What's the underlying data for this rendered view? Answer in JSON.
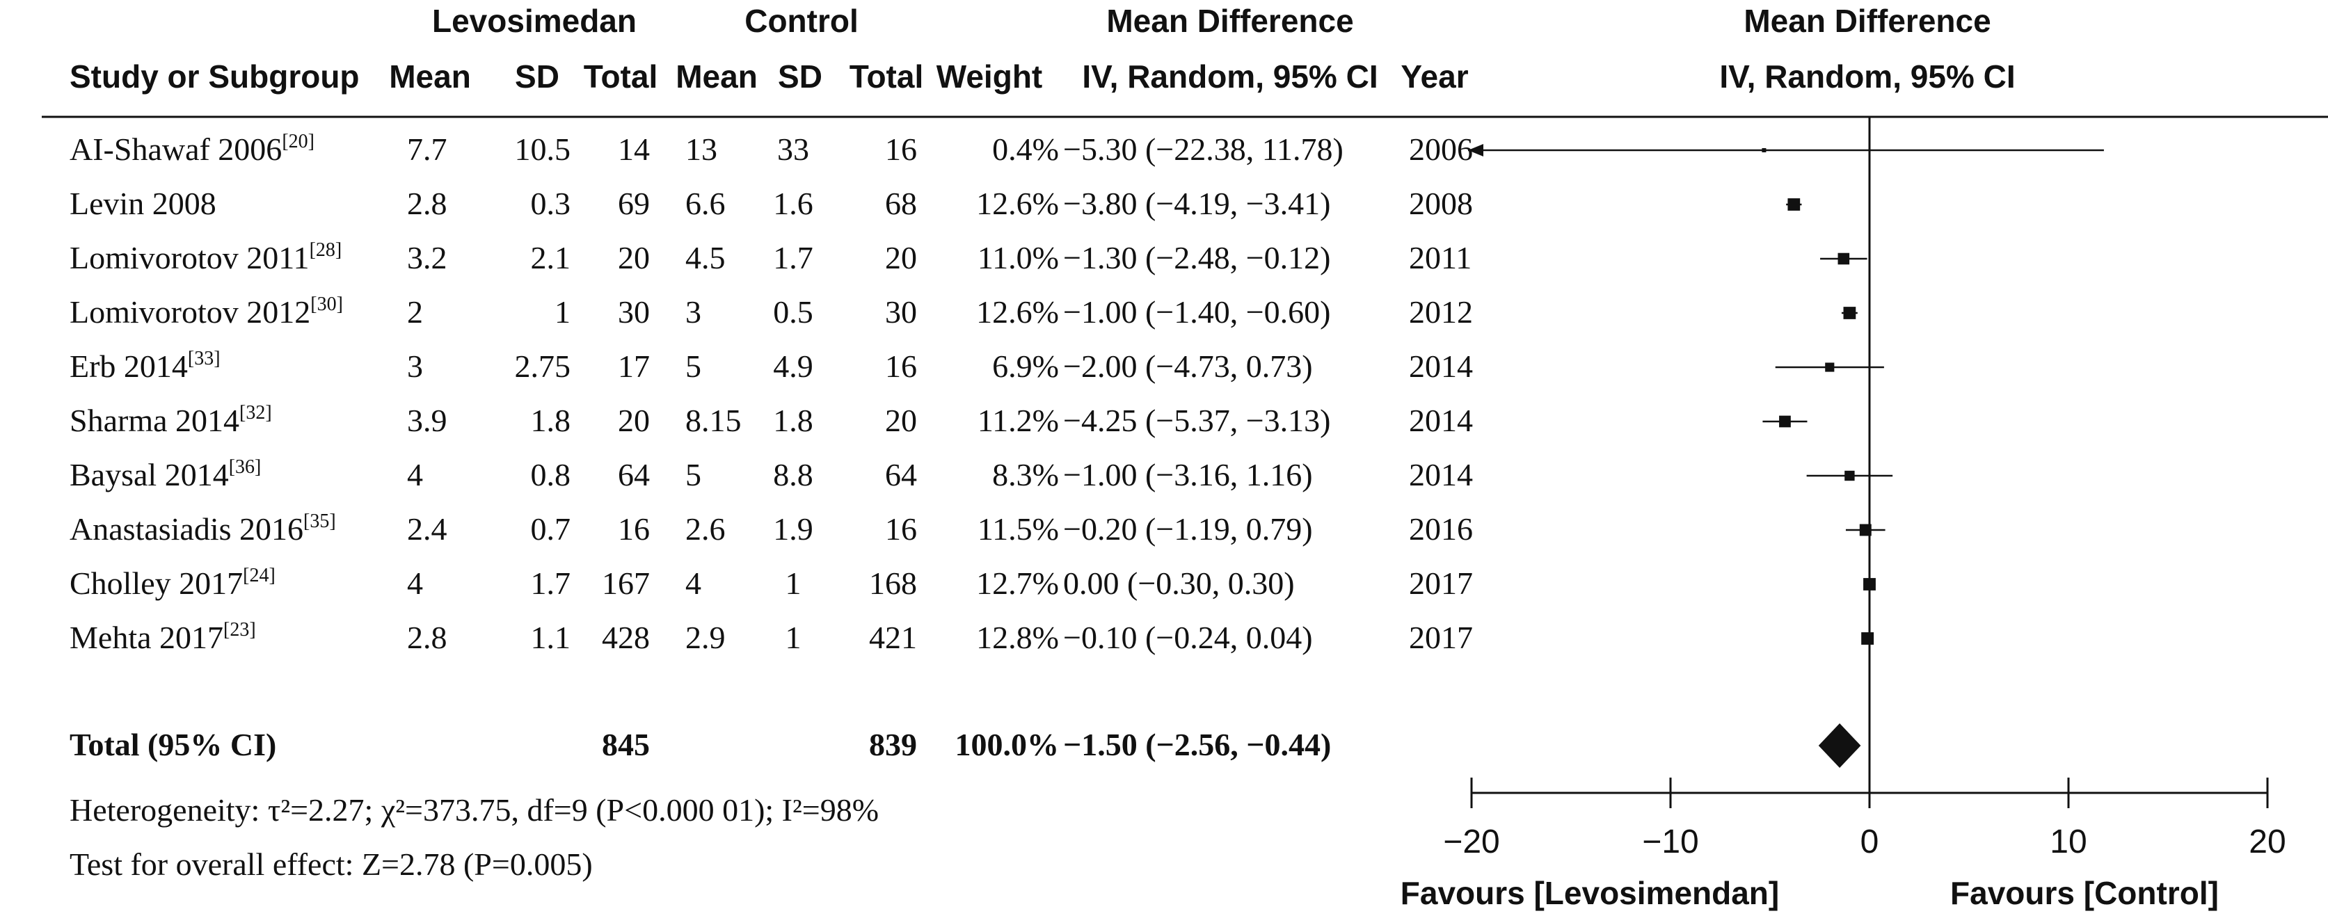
{
  "header": {
    "group1": "Levosimedan",
    "group2": "Control",
    "md_title": "Mean Difference",
    "plot_title": "Mean Difference",
    "plot_method": "IV, Random, 95% CI",
    "columns": {
      "study": "Study or Subgroup",
      "mean1": "Mean",
      "sd1": "SD",
      "total1": "Total",
      "mean2": "Mean",
      "sd2": "SD",
      "total2": "Total",
      "weight": "Weight",
      "md": "IV, Random, 95% CI",
      "year": "Year"
    }
  },
  "chart_data": {
    "type": "forest",
    "xlim": [
      -20,
      20
    ],
    "ticks": [
      -20,
      -10,
      0,
      10,
      20
    ],
    "tick_labels": [
      "−20",
      "−10",
      "0",
      "10",
      "20"
    ],
    "favours_left": "Favours [Levosimendan]",
    "favours_right": "Favours [Control]",
    "studies": [
      {
        "name": "AI-Shawaf 2006",
        "ref": "[20]",
        "mean1": "7.7",
        "sd1": "10.5",
        "total1": "14",
        "mean2": "13",
        "sd2": "33",
        "total2": "16",
        "weight": "0.4%",
        "md_text": "−5.30 (−22.38, 11.78)",
        "year": "2006",
        "md": -5.3,
        "lo": -22.38,
        "hi": 11.78,
        "w": 0.4
      },
      {
        "name": "Levin 2008",
        "ref": "",
        "mean1": "2.8",
        "sd1": "0.3",
        "total1": "69",
        "mean2": "6.6",
        "sd2": "1.6",
        "total2": "68",
        "weight": "12.6%",
        "md_text": "−3.80 (−4.19, −3.41)",
        "year": "2008",
        "md": -3.8,
        "lo": -4.19,
        "hi": -3.41,
        "w": 12.6
      },
      {
        "name": "Lomivorotov 2011",
        "ref": "[28]",
        "mean1": "3.2",
        "sd1": "2.1",
        "total1": "20",
        "mean2": "4.5",
        "sd2": "1.7",
        "total2": "20",
        "weight": "11.0%",
        "md_text": "−1.30 (−2.48, −0.12)",
        "year": "2011",
        "md": -1.3,
        "lo": -2.48,
        "hi": -0.12,
        "w": 11.0
      },
      {
        "name": "Lomivorotov 2012",
        "ref": "[30]",
        "mean1": "2",
        "sd1": "1",
        "total1": "30",
        "mean2": "3",
        "sd2": "0.5",
        "total2": "30",
        "weight": "12.6%",
        "md_text": "−1.00 (−1.40, −0.60)",
        "year": "2012",
        "md": -1.0,
        "lo": -1.4,
        "hi": -0.6,
        "w": 12.6
      },
      {
        "name": "Erb 2014",
        "ref": "[33]",
        "mean1": "3",
        "sd1": "2.75",
        "total1": "17",
        "mean2": "5",
        "sd2": "4.9",
        "total2": "16",
        "weight": "6.9%",
        "md_text": "−2.00 (−4.73, 0.73)",
        "year": "2014",
        "md": -2.0,
        "lo": -4.73,
        "hi": 0.73,
        "w": 6.9
      },
      {
        "name": "Sharma 2014",
        "ref": "[32]",
        "mean1": "3.9",
        "sd1": "1.8",
        "total1": "20",
        "mean2": "8.15",
        "sd2": "1.8",
        "total2": "20",
        "weight": "11.2%",
        "md_text": "−4.25 (−5.37, −3.13)",
        "year": "2014",
        "md": -4.25,
        "lo": -5.37,
        "hi": -3.13,
        "w": 11.2
      },
      {
        "name": "Baysal 2014",
        "ref": "[36]",
        "mean1": "4",
        "sd1": "0.8",
        "total1": "64",
        "mean2": "5",
        "sd2": "8.8",
        "total2": "64",
        "weight": "8.3%",
        "md_text": "−1.00 (−3.16, 1.16)",
        "year": "2014",
        "md": -1.0,
        "lo": -3.16,
        "hi": 1.16,
        "w": 8.3
      },
      {
        "name": "Anastasiadis 2016",
        "ref": "[35]",
        "mean1": "2.4",
        "sd1": "0.7",
        "total1": "16",
        "mean2": "2.6",
        "sd2": "1.9",
        "total2": "16",
        "weight": "11.5%",
        "md_text": "−0.20 (−1.19, 0.79)",
        "year": "2016",
        "md": -0.2,
        "lo": -1.19,
        "hi": 0.79,
        "w": 11.5
      },
      {
        "name": "Cholley 2017",
        "ref": "[24]",
        "mean1": "4",
        "sd1": "1.7",
        "total1": "167",
        "mean2": "4",
        "sd2": "1",
        "total2": "168",
        "weight": "12.7%",
        "md_text": "0.00 (−0.30, 0.30)",
        "year": "2017",
        "md": 0.0,
        "lo": -0.3,
        "hi": 0.3,
        "w": 12.7
      },
      {
        "name": "Mehta 2017",
        "ref": "[23]",
        "mean1": "2.8",
        "sd1": "1.1",
        "total1": "428",
        "mean2": "2.9",
        "sd2": "1",
        "total2": "421",
        "weight": "12.8%",
        "md_text": "−0.10 (−0.24, 0.04)",
        "year": "2017",
        "md": -0.1,
        "lo": -0.24,
        "hi": 0.04,
        "w": 12.8
      }
    ],
    "total": {
      "label": "Total (95% CI)",
      "total1": "845",
      "total2": "839",
      "weight": "100.0%",
      "md_text": "−1.50 (−2.56, −0.44)",
      "md": -1.5,
      "lo": -2.56,
      "hi": -0.44
    }
  },
  "footer": {
    "heterogeneity": "Heterogeneity: τ²=2.27; χ²=373.75, df=9 (P<0.000 01); I²=98%",
    "overall_effect": "Test for overall effect: Z=2.78 (P=0.005)"
  }
}
